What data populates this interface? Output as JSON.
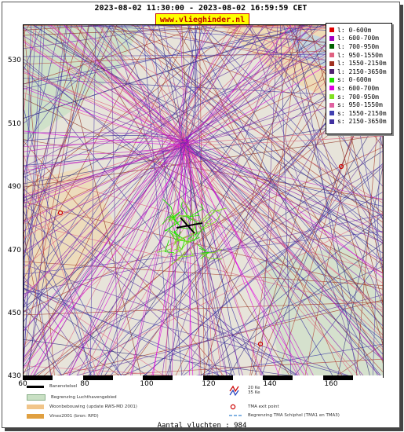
{
  "title": "2023-08-02 11:30:00 - 2023-08-02 16:59:59 CET",
  "badge": "www.vlieghinder.nl",
  "yticks": [
    "530",
    "510",
    "490",
    "470",
    "450",
    "430"
  ],
  "xticks": [
    "60",
    "80",
    "100",
    "120",
    "140",
    "160"
  ],
  "legend": [
    {
      "label": "l: 0-600m",
      "color": "#e00000"
    },
    {
      "label": "l: 600-700m",
      "color": "#a000c0"
    },
    {
      "label": "l: 700-950m",
      "color": "#006000"
    },
    {
      "label": "l: 950-1550m",
      "color": "#e06080"
    },
    {
      "label": "l: 1550-2150m",
      "color": "#a03020"
    },
    {
      "label": "l: 2150-3650m",
      "color": "#502070"
    },
    {
      "label": "s: 0-600m",
      "color": "#20e000"
    },
    {
      "label": "s: 600-700m",
      "color": "#e000e0"
    },
    {
      "label": "s: 700-950m",
      "color": "#80e020"
    },
    {
      "label": "s: 950-1550m",
      "color": "#e060a0"
    },
    {
      "label": "s: 1550-2150m",
      "color": "#4040b0"
    },
    {
      "label": "s: 2150-3650m",
      "color": "#4030a0"
    }
  ],
  "bottom_legend": {
    "runway": "Banenstelsel",
    "airport_boundary": "Begrenzing Luchthavengebied",
    "housing": "Woonbebouwing (update RWS-MD 2001)",
    "vinex": "Vinex2001 (bron: RPD)",
    "zone_20": "20 Ke",
    "zone_35": "35 Ke",
    "tma_exit": "TMA exit point",
    "tma_boundary": "Begrenzing TMA Schiphol  (TMA1 en TMA3)"
  },
  "flight_count": "Aantal vluchten : 984",
  "colors": {
    "land": "#e7e4da",
    "housing": "#f1d7a8",
    "water": "#bcd6e6",
    "green": "#c9e0c4"
  }
}
